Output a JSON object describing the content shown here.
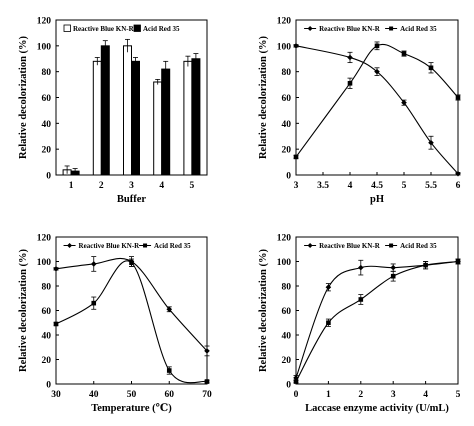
{
  "chart_data": [
    {
      "type": "bar",
      "xlabel": "Buffer",
      "ylabel": "Relative decolorization (%)",
      "categories": [
        "1",
        "2",
        "3",
        "4",
        "5"
      ],
      "ylim": [
        0,
        120
      ],
      "yticks": [
        0,
        20,
        40,
        60,
        80,
        100,
        120
      ],
      "legend_position": "top",
      "series": [
        {
          "name": "Reactive Blue KN-R",
          "fill": "#ffffff",
          "values": [
            4,
            88,
            100,
            72,
            88
          ],
          "errors": [
            3,
            3,
            5,
            2,
            4
          ]
        },
        {
          "name": "Acid Red 35",
          "fill": "#000000",
          "values": [
            3,
            100,
            88,
            82,
            90
          ],
          "errors": [
            2,
            4,
            3,
            6,
            4
          ]
        }
      ]
    },
    {
      "type": "line",
      "xlabel": "pH",
      "ylabel": "Relative decolorization (%)",
      "xlim": [
        3,
        6
      ],
      "xticks": [
        "3",
        "3.5",
        "4",
        "4.5",
        "5",
        "5.5",
        "6"
      ],
      "ylim": [
        0,
        120
      ],
      "yticks": [
        0,
        20,
        40,
        60,
        80,
        100,
        120
      ],
      "legend_position": "top",
      "series": [
        {
          "name": "Reactive Blue KN-R",
          "marker": "diamond",
          "x": [
            3,
            4,
            4.5,
            5,
            5.5,
            6
          ],
          "values": [
            100,
            91,
            80,
            56,
            25,
            1
          ],
          "errors": [
            1,
            4,
            3,
            2,
            5,
            1
          ]
        },
        {
          "name": "Acid Red 35",
          "marker": "square",
          "x": [
            3,
            4,
            4.5,
            5,
            5.5,
            6
          ],
          "values": [
            14,
            71,
            100,
            94,
            83,
            60
          ],
          "errors": [
            1,
            4,
            3,
            2,
            4,
            2
          ]
        }
      ]
    },
    {
      "type": "line",
      "xlabel": "Temperature (℃)",
      "ylabel": "Relative decolorization (%)",
      "xlim": [
        30,
        70
      ],
      "xticks": [
        "30",
        "40",
        "50",
        "60",
        "70"
      ],
      "ylim": [
        0,
        120
      ],
      "yticks": [
        0,
        20,
        40,
        60,
        80,
        100,
        120
      ],
      "legend_position": "top",
      "series": [
        {
          "name": "Reactive Blue KN-R",
          "marker": "diamond",
          "x": [
            30,
            40,
            50,
            60,
            70
          ],
          "values": [
            94,
            98,
            100,
            61,
            27
          ],
          "errors": [
            1,
            6,
            4,
            2,
            4
          ]
        },
        {
          "name": "Acid Red 35",
          "marker": "square",
          "x": [
            30,
            40,
            50,
            60,
            70
          ],
          "values": [
            49,
            66,
            99,
            11,
            2
          ],
          "errors": [
            1,
            5,
            3,
            3,
            1
          ]
        }
      ]
    },
    {
      "type": "line",
      "xlabel": "Laccase enzyme activity (U/mL)",
      "ylabel": "Relative decolorization (%)",
      "xlim": [
        0,
        5
      ],
      "xticks": [
        "0",
        "1",
        "2",
        "3",
        "4",
        "5"
      ],
      "ylim": [
        0,
        120
      ],
      "yticks": [
        0,
        20,
        40,
        60,
        80,
        100,
        120
      ],
      "legend_position": "top",
      "series": [
        {
          "name": "Reactive Blue KN-R",
          "marker": "diamond",
          "x": [
            0,
            1,
            2,
            3,
            4,
            5
          ],
          "values": [
            5,
            79,
            95,
            95,
            97,
            100
          ],
          "errors": [
            2,
            3,
            6,
            3,
            3,
            2
          ]
        },
        {
          "name": "Acid Red 35",
          "marker": "square",
          "x": [
            0,
            1,
            2,
            3,
            4,
            5
          ],
          "values": [
            2,
            50,
            69,
            88,
            97,
            100
          ],
          "errors": [
            1,
            3,
            4,
            4,
            3,
            2
          ]
        }
      ]
    }
  ]
}
